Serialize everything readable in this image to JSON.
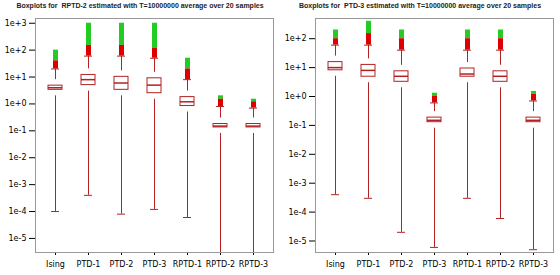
{
  "chart_data": [
    {
      "type": "box",
      "title": "Boxplots for  RPTD-2 estimated with T=10000000 average over 20 samples",
      "categories": [
        "Ising",
        "PTD-1",
        "PTD-2",
        "PTD-3",
        "RPTD-1",
        "RPTD-2",
        "RPTD-3"
      ],
      "whisker_low": [
        0.0001,
        0.0004,
        8e-05,
        0.00012,
        6e-05,
        3e-06,
        1e-06
      ],
      "q1": [
        2,
        3,
        2,
        1.5,
        0.5,
        0.08,
        0.08
      ],
      "median": [
        4,
        8,
        6,
        5,
        1.2,
        0.15,
        0.15
      ],
      "q3": [
        8,
        20,
        17,
        15,
        3,
        0.3,
        0.3
      ],
      "whisker_high": [
        20,
        60,
        60,
        50,
        8,
        0.8,
        0.7
      ],
      "outliers": [
        {
          "color": "#dd0000",
          "ranges": [
            [
              20,
              40
            ],
            [
              60,
              150
            ],
            [
              60,
              150
            ],
            [
              50,
              120
            ],
            [
              8,
              20
            ],
            [
              0.8,
              1.5
            ],
            [
              0.7,
              1.2
            ]
          ]
        },
        {
          "color": "#22cc22",
          "ranges": [
            [
              40,
              100
            ],
            [
              150,
              1000
            ],
            [
              150,
              1000
            ],
            [
              120,
              1000
            ],
            [
              20,
              50
            ],
            [
              1.5,
              2
            ],
            [
              1.2,
              1.5
            ]
          ]
        }
      ],
      "color": "#b22222",
      "log": "y",
      "ylim": [
        3e-06,
        1500
      ],
      "yticks": [
        {
          "value": 1000,
          "label": "1e+3"
        },
        {
          "value": 100,
          "label": "1e+2"
        },
        {
          "value": 10,
          "label": "1e+1"
        },
        {
          "value": 1,
          "label": "1e+0"
        },
        {
          "value": 0.1,
          "label": "1e-1"
        },
        {
          "value": 0.01,
          "label": "1e-2"
        },
        {
          "value": 0.001,
          "label": "1e-3"
        },
        {
          "value": 0.0001,
          "label": "1e-4"
        },
        {
          "value": 1e-05,
          "label": "1e-5"
        }
      ]
    },
    {
      "type": "box",
      "title": "Boxplots for  PTD-3 estimated with T=10000000 average over 20 samples",
      "categories": [
        "Ising",
        "PTD-1",
        "PTD-2",
        "PTD-3",
        "RPTD-1",
        "RPTD-2",
        "RPTD-3"
      ],
      "whisker_low": [
        0.0004,
        0.0003,
        2e-05,
        6e-06,
        0.0003,
        6e-05,
        5e-06
      ],
      "q1": [
        5,
        3,
        2,
        0.08,
        3,
        2,
        0.08
      ],
      "median": [
        10,
        8,
        5,
        0.15,
        6,
        5,
        0.15
      ],
      "q3": [
        25,
        20,
        12,
        0.3,
        15,
        12,
        0.3
      ],
      "whisker_high": [
        60,
        60,
        40,
        0.6,
        40,
        40,
        0.7
      ],
      "outliers": [
        {
          "color": "#dd0000",
          "ranges": [
            [
              60,
              100
            ],
            [
              60,
              150
            ],
            [
              40,
              100
            ],
            [
              0.6,
              1
            ],
            [
              40,
              100
            ],
            [
              40,
              100
            ],
            [
              0.7,
              1.2
            ]
          ]
        },
        {
          "color": "#22cc22",
          "ranges": [
            [
              100,
              200
            ],
            [
              150,
              400
            ],
            [
              100,
              200
            ],
            [
              1,
              1.3
            ],
            [
              100,
              200
            ],
            [
              100,
              200
            ],
            [
              1.2,
              1.5
            ]
          ]
        }
      ],
      "color": "#b22222",
      "log": "y",
      "ylim": [
        4e-06,
        500
      ],
      "yticks": [
        {
          "value": 100,
          "label": "1e+2"
        },
        {
          "value": 10,
          "label": "1e+1"
        },
        {
          "value": 1,
          "label": "1e+0"
        },
        {
          "value": 0.1,
          "label": "1e-1"
        },
        {
          "value": 0.01,
          "label": "1e-2"
        },
        {
          "value": 0.001,
          "label": "1e-3"
        },
        {
          "value": 0.0001,
          "label": "1e-4"
        },
        {
          "value": 1e-05,
          "label": "1e-5"
        }
      ]
    }
  ]
}
